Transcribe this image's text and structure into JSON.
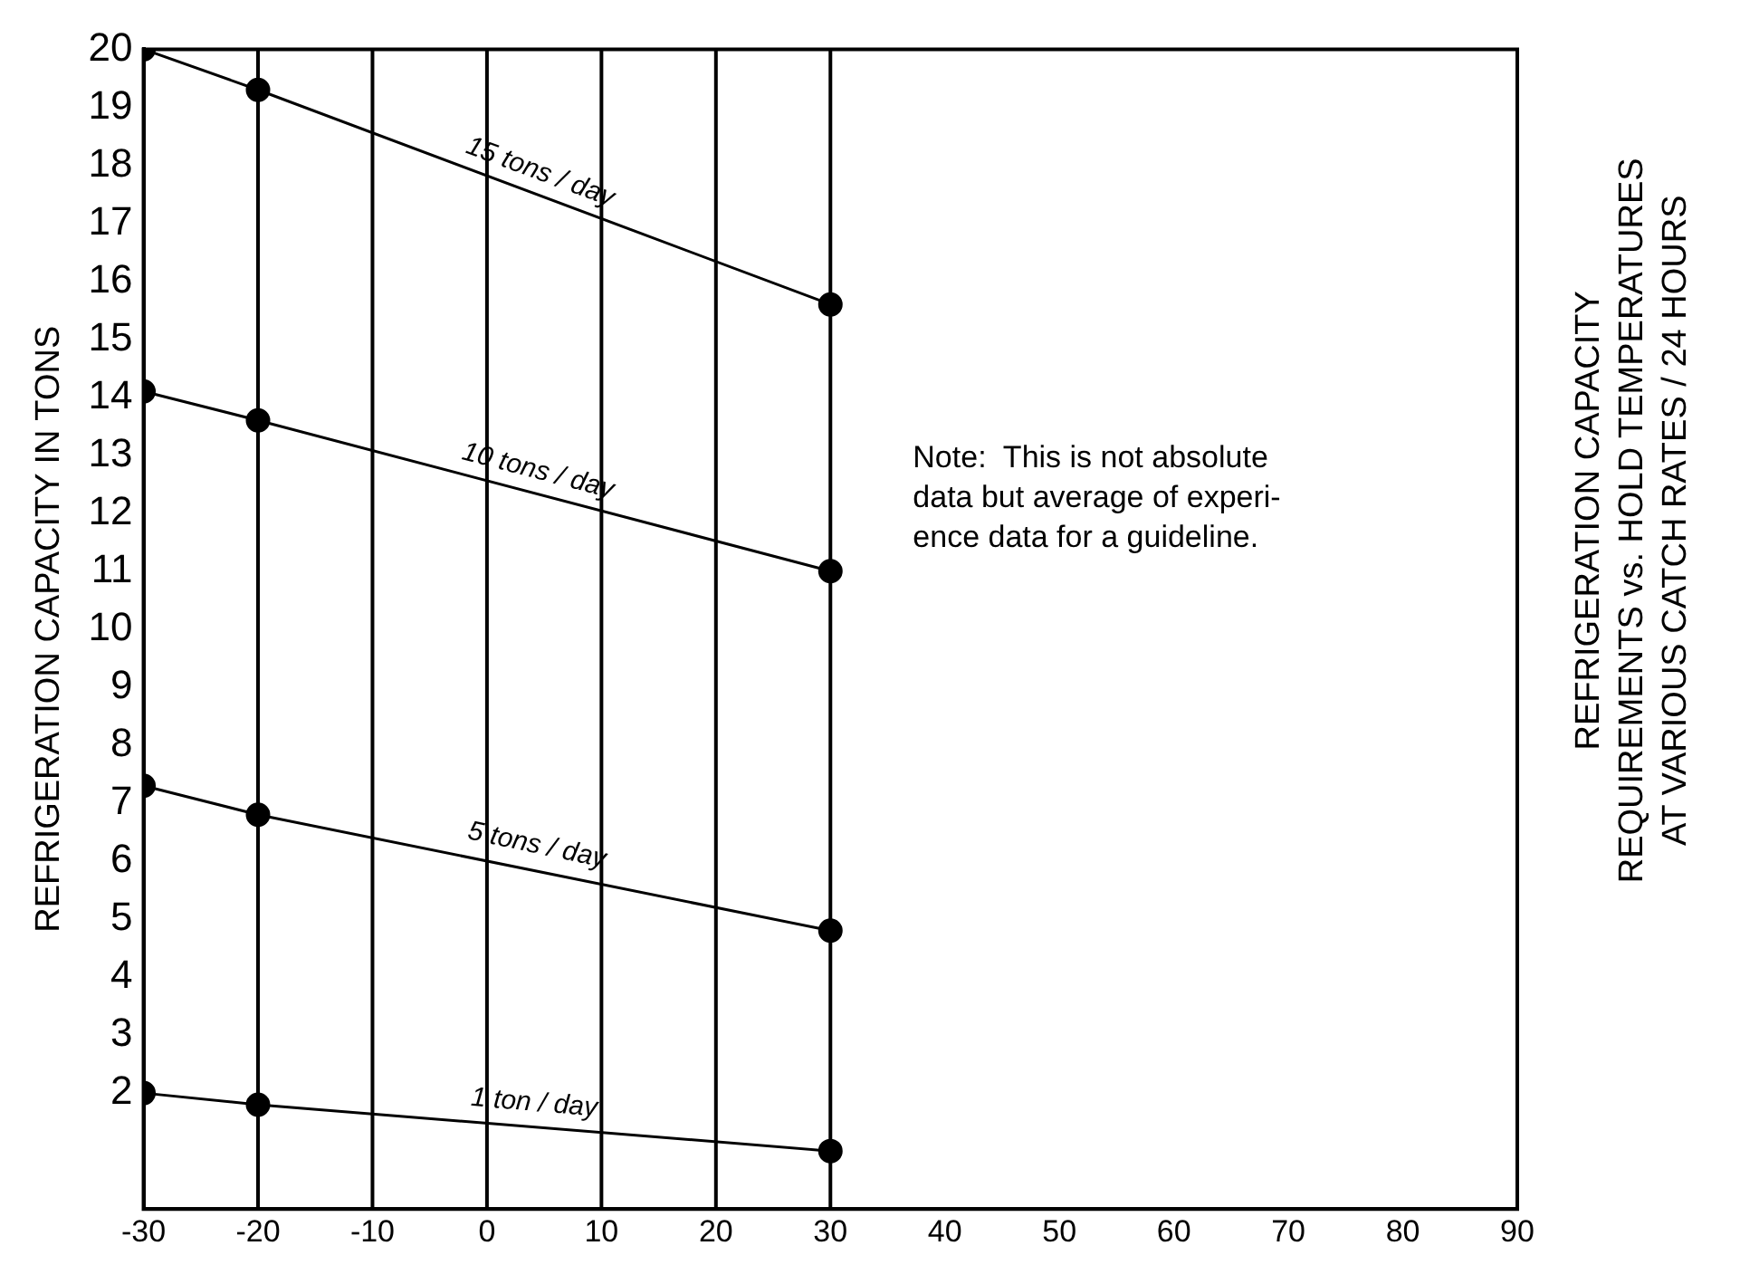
{
  "chart_data": {
    "type": "line",
    "title": "REFRIGERATION CAPACITY\nREQUIREMENTS vs. HOLD TEMPERATURES\nAT VARIOUS CATCH RATES / 24 HOURS",
    "ylabel": "REFRIGERATION CAPACITY IN TONS",
    "annotations": [
      "Note:  This is not absolute\ndata but average of experi-\nence data for a guideline."
    ],
    "series": [
      {
        "name": "15 tons / day",
        "color": "#000000",
        "x": [
          -30,
          -20,
          30
        ],
        "values": [
          20,
          19.3,
          15.6
        ]
      },
      {
        "name": "10 tons / day",
        "color": "#000000",
        "x": [
          -30,
          -20,
          30
        ],
        "values": [
          14.1,
          13.6,
          11.0
        ]
      },
      {
        "name": "5 tons / day",
        "color": "#000000",
        "x": [
          -30,
          -20,
          30
        ],
        "values": [
          7.3,
          6.8,
          4.8
        ]
      },
      {
        "name": "1 ton / day",
        "color": "#000000",
        "x": [
          -30,
          -20,
          30
        ],
        "values": [
          2.0,
          1.8,
          1.0
        ]
      }
    ],
    "xlim": [
      -30,
      90
    ],
    "xticks": [
      -30,
      -20,
      -10,
      0,
      10,
      20,
      30,
      40,
      50,
      60,
      70,
      80,
      90
    ],
    "ylim": [
      0,
      20
    ],
    "yticks": [
      2,
      3,
      4,
      5,
      6,
      7,
      8,
      9,
      10,
      11,
      12,
      13,
      14,
      15,
      16,
      17,
      18,
      19,
      20
    ],
    "ref_lines": [
      {
        "axis": "x",
        "value": -20,
        "label": null
      },
      {
        "axis": "x",
        "value": -10,
        "label": null
      },
      {
        "axis": "x",
        "value": 0,
        "label": null
      },
      {
        "axis": "x",
        "value": 10,
        "label": null
      },
      {
        "axis": "x",
        "value": 20,
        "label": null
      },
      {
        "axis": "x",
        "value": 30,
        "label": null
      }
    ],
    "grid": false,
    "legend": false,
    "marker": "circle",
    "line_style": "solid"
  }
}
